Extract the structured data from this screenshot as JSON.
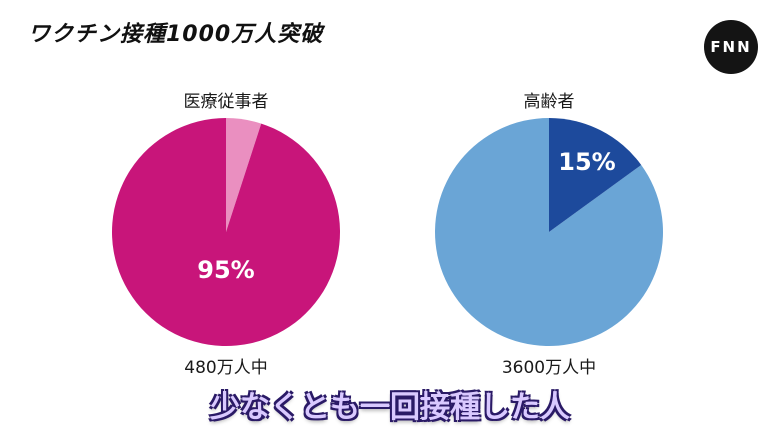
{
  "headline": "ワクチン接種1000万人突破",
  "logo": "FNN",
  "caption": "少なくとも一回接種した人",
  "colors": {
    "healthcare_main": "#c8157a",
    "healthcare_rest": "#ea8fc0",
    "elderly_main": "#1d4a9c",
    "elderly_rest": "#6aa5d6"
  },
  "chart_data": [
    {
      "type": "pie",
      "title": "医療従事者",
      "footer": "480万人中",
      "slices": [
        {
          "label": "95%",
          "value": 95
        },
        {
          "label": "",
          "value": 5
        }
      ]
    },
    {
      "type": "pie",
      "title": "高齢者",
      "footer": "3600万人中",
      "slices": [
        {
          "label": "15%",
          "value": 15
        },
        {
          "label": "",
          "value": 85
        }
      ]
    }
  ]
}
